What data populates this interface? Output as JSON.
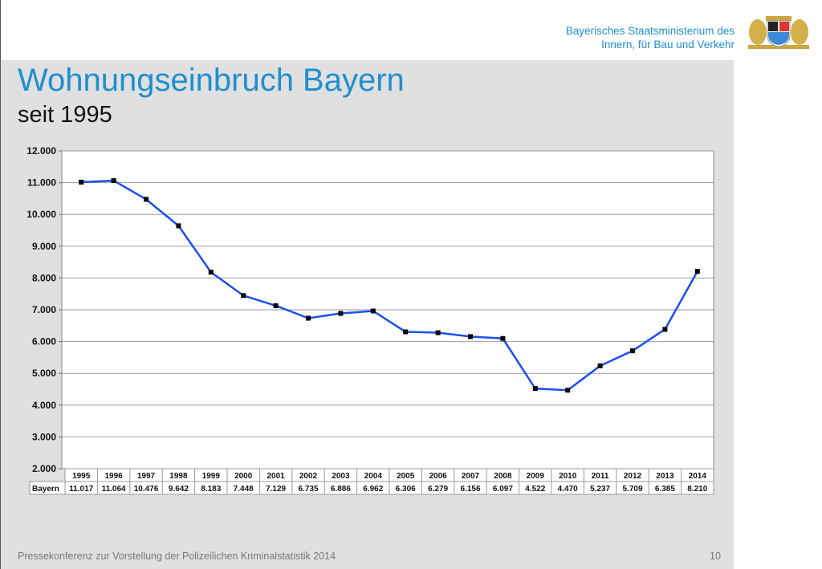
{
  "header": {
    "ministry_line1": "Bayerisches Staatsministerium des",
    "ministry_line2": "Innern, für Bau und Verkehr"
  },
  "slide": {
    "title": "Wohnungseinbruch Bayern",
    "subtitle": "seit 1995"
  },
  "footer": {
    "text": "Pressekonferenz zur Vorstellung der Polizeilichen Kriminalstatistik 2014",
    "page": "10"
  },
  "colors": {
    "accent": "#1f8fce",
    "line": "#1a4ff0"
  },
  "chart_data": {
    "type": "line",
    "title": "Wohnungseinbruch Bayern",
    "xlabel": "",
    "ylabel": "",
    "ylim": [
      2000,
      12000
    ],
    "yticks": [
      "2.000",
      "3.000",
      "4.000",
      "5.000",
      "6.000",
      "7.000",
      "8.000",
      "9.000",
      "10.000",
      "11.000",
      "12.000"
    ],
    "categories": [
      "1995",
      "1996",
      "1997",
      "1998",
      "1999",
      "2000",
      "2001",
      "2002",
      "2003",
      "2004",
      "2005",
      "2006",
      "2007",
      "2008",
      "2009",
      "2010",
      "2011",
      "2012",
      "2013",
      "2014"
    ],
    "series": [
      {
        "name": "Bayern",
        "values": [
          11017,
          11064,
          10476,
          9642,
          8183,
          7448,
          7129,
          6735,
          6886,
          6962,
          6306,
          6279,
          6156,
          6097,
          4522,
          4470,
          5237,
          5709,
          6385,
          8210
        ],
        "labels": [
          "11.017",
          "11.064",
          "10.476",
          "9.642",
          "8.183",
          "7.448",
          "7.129",
          "6.735",
          "6.886",
          "6.962",
          "6.306",
          "6.279",
          "6.156",
          "6.097",
          "4.522",
          "4.470",
          "5.237",
          "5.709",
          "6.385",
          "8.210"
        ]
      }
    ],
    "grid": true,
    "legend": "data-table"
  }
}
